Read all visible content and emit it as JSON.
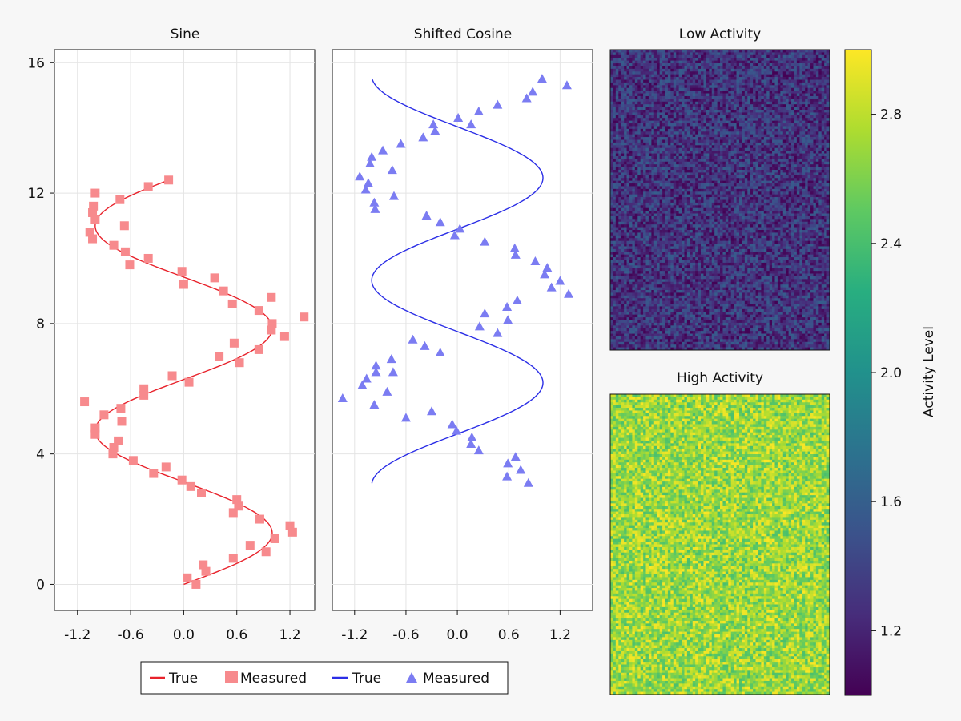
{
  "chart_data": [
    {
      "type": "line+scatter",
      "title": "Sine",
      "xlabel": "",
      "ylabel": "",
      "xlim": [
        -1.46,
        1.48
      ],
      "ylim": [
        -0.8,
        16.4
      ],
      "xticks": [
        -1.2,
        -0.6,
        0.0,
        0.6,
        1.2
      ],
      "xtick_labels": [
        "-1.2",
        "-0.6",
        "0.0",
        "0.6",
        "1.2"
      ],
      "yticks": [
        0,
        4,
        8,
        12,
        16
      ],
      "ytick_labels": [
        "0",
        "4",
        "8",
        "12",
        "16"
      ],
      "grid": true,
      "color": "#e8222b",
      "marker_color": "#f78a8d",
      "series": [
        {
          "name": "True",
          "kind": "line",
          "curve": "x = sin(y)",
          "y_range": [
            0,
            12.4
          ]
        },
        {
          "name": "Measured",
          "kind": "scatter",
          "marker": "square",
          "points": [
            [
              0.04,
              0.2
            ],
            [
              0.14,
              0.0
            ],
            [
              0.22,
              0.6
            ],
            [
              0.25,
              0.4
            ],
            [
              0.56,
              0.8
            ],
            [
              0.75,
              1.2
            ],
            [
              0.93,
              1.0
            ],
            [
              1.03,
              1.4
            ],
            [
              1.2,
              1.8
            ],
            [
              1.23,
              1.6
            ],
            [
              0.86,
              2.0
            ],
            [
              0.56,
              2.2
            ],
            [
              0.62,
              2.4
            ],
            [
              0.6,
              2.6
            ],
            [
              0.2,
              2.8
            ],
            [
              0.08,
              3.0
            ],
            [
              -0.02,
              3.2
            ],
            [
              -0.34,
              3.4
            ],
            [
              -0.2,
              3.6
            ],
            [
              -0.57,
              3.8
            ],
            [
              -0.8,
              4.0
            ],
            [
              -0.79,
              4.2
            ],
            [
              -0.74,
              4.4
            ],
            [
              -1.0,
              4.6
            ],
            [
              -1.0,
              4.8
            ],
            [
              -0.7,
              5.0
            ],
            [
              -0.9,
              5.2
            ],
            [
              -0.71,
              5.4
            ],
            [
              -1.12,
              5.6
            ],
            [
              -0.45,
              5.8
            ],
            [
              -0.45,
              6.0
            ],
            [
              0.06,
              6.2
            ],
            [
              -0.13,
              6.4
            ],
            [
              0.63,
              6.8
            ],
            [
              0.4,
              7.0
            ],
            [
              0.85,
              7.2
            ],
            [
              0.57,
              7.4
            ],
            [
              1.14,
              7.6
            ],
            [
              0.99,
              7.8
            ],
            [
              1.0,
              8.0
            ],
            [
              1.36,
              8.2
            ],
            [
              0.85,
              8.4
            ],
            [
              0.55,
              8.6
            ],
            [
              0.99,
              8.8
            ],
            [
              0.45,
              9.0
            ],
            [
              0.0,
              9.2
            ],
            [
              0.35,
              9.4
            ],
            [
              -0.02,
              9.6
            ],
            [
              -0.61,
              9.8
            ],
            [
              -0.4,
              10.0
            ],
            [
              -0.66,
              10.2
            ],
            [
              -0.79,
              10.4
            ],
            [
              -1.03,
              10.6
            ],
            [
              -1.06,
              10.8
            ],
            [
              -0.67,
              11.0
            ],
            [
              -1.0,
              11.2
            ],
            [
              -1.03,
              11.4
            ],
            [
              -1.02,
              11.6
            ],
            [
              -0.72,
              11.8
            ],
            [
              -1.0,
              12.0
            ],
            [
              -0.4,
              12.2
            ],
            [
              -0.17,
              12.4
            ]
          ]
        }
      ]
    },
    {
      "type": "line+scatter",
      "title": "Shifted Cosine",
      "xlabel": "",
      "ylabel": "",
      "xlim": [
        -1.46,
        1.58
      ],
      "ylim": [
        -0.8,
        16.4
      ],
      "xticks": [
        -1.2,
        -0.6,
        0.0,
        0.6,
        1.2
      ],
      "xtick_labels": [
        "-1.2",
        "-0.6",
        "0.0",
        "0.6",
        "1.2"
      ],
      "yticks": [
        0,
        4,
        8,
        12,
        16
      ],
      "grid": true,
      "color": "#2b2ee6",
      "marker_color": "#7b7cf2",
      "series": [
        {
          "name": "True",
          "kind": "line",
          "curve": "x = cos(y + 0.1)",
          "y_range": [
            3.1,
            15.5
          ]
        },
        {
          "name": "Measured",
          "kind": "scatter",
          "marker": "triangle",
          "points": [
            [
              0.83,
              3.1
            ],
            [
              0.58,
              3.3
            ],
            [
              0.74,
              3.5
            ],
            [
              0.59,
              3.7
            ],
            [
              0.68,
              3.9
            ],
            [
              0.25,
              4.1
            ],
            [
              0.16,
              4.3
            ],
            [
              0.17,
              4.5
            ],
            [
              -0.01,
              4.7
            ],
            [
              -0.06,
              4.9
            ],
            [
              -0.6,
              5.1
            ],
            [
              -0.3,
              5.3
            ],
            [
              -0.97,
              5.5
            ],
            [
              -1.34,
              5.7
            ],
            [
              -0.82,
              5.9
            ],
            [
              -1.11,
              6.1
            ],
            [
              -1.06,
              6.3
            ],
            [
              -0.95,
              6.5
            ],
            [
              -0.75,
              6.5
            ],
            [
              -0.95,
              6.7
            ],
            [
              -0.77,
              6.9
            ],
            [
              -0.2,
              7.1
            ],
            [
              -0.38,
              7.3
            ],
            [
              -0.52,
              7.5
            ],
            [
              0.47,
              7.7
            ],
            [
              0.26,
              7.9
            ],
            [
              0.59,
              8.1
            ],
            [
              0.32,
              8.3
            ],
            [
              0.58,
              8.5
            ],
            [
              0.7,
              8.7
            ],
            [
              1.3,
              8.9
            ],
            [
              1.1,
              9.1
            ],
            [
              1.2,
              9.3
            ],
            [
              1.02,
              9.5
            ],
            [
              1.05,
              9.7
            ],
            [
              0.91,
              9.9
            ],
            [
              0.68,
              10.1
            ],
            [
              0.67,
              10.3
            ],
            [
              0.32,
              10.5
            ],
            [
              -0.03,
              10.7
            ],
            [
              0.03,
              10.9
            ],
            [
              -0.2,
              11.1
            ],
            [
              -0.36,
              11.3
            ],
            [
              -0.96,
              11.5
            ],
            [
              -0.97,
              11.7
            ],
            [
              -0.74,
              11.9
            ],
            [
              -1.07,
              12.1
            ],
            [
              -1.04,
              12.3
            ],
            [
              -1.14,
              12.5
            ],
            [
              -0.76,
              12.7
            ],
            [
              -1.02,
              12.9
            ],
            [
              -1.0,
              13.1
            ],
            [
              -0.87,
              13.3
            ],
            [
              -0.66,
              13.5
            ],
            [
              -0.4,
              13.7
            ],
            [
              -0.26,
              13.9
            ],
            [
              0.16,
              14.1
            ],
            [
              -0.28,
              14.1
            ],
            [
              0.01,
              14.3
            ],
            [
              0.25,
              14.5
            ],
            [
              0.47,
              14.7
            ],
            [
              0.81,
              14.9
            ],
            [
              0.88,
              15.1
            ],
            [
              1.28,
              15.3
            ],
            [
              0.99,
              15.5
            ]
          ]
        }
      ]
    },
    {
      "type": "heatmap",
      "title": "Low Activity",
      "grid_size": [
        80,
        110
      ],
      "value_range": [
        1.0,
        1.6
      ],
      "colormap": "viridis"
    },
    {
      "type": "heatmap",
      "title": "High Activity",
      "grid_size": [
        80,
        110
      ],
      "value_range": [
        2.4,
        3.0
      ],
      "colormap": "viridis"
    },
    {
      "type": "colorbar",
      "label": "Activity Level",
      "range": [
        1.0,
        3.0
      ],
      "ticks": [
        1.2,
        1.6,
        2.0,
        2.4,
        2.8
      ],
      "tick_labels": [
        "1.2",
        "1.6",
        "2.0",
        "2.4",
        "2.8"
      ],
      "colormap": "viridis"
    }
  ],
  "legend": {
    "placement": "bottom-left",
    "entries": [
      {
        "label": "True",
        "kind": "line",
        "color": "#e8222b"
      },
      {
        "label": "Measured",
        "kind": "square",
        "color": "#f78a8d"
      },
      {
        "label": "True",
        "kind": "line",
        "color": "#2b2ee6"
      },
      {
        "label": "Measured",
        "kind": "triangle",
        "color": "#7b7cf2"
      }
    ]
  }
}
